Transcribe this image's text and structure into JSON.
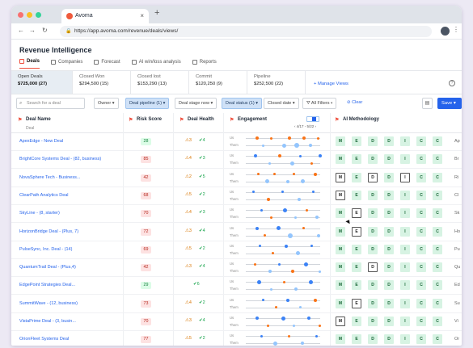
{
  "browser": {
    "tab_title": "Avoma",
    "url": "https://app.avoma.com/revenue/deals/views/"
  },
  "app": {
    "title": "Revenue Intelligence",
    "nav_tabs": [
      {
        "label": "Deals",
        "icon": "deals-icon",
        "active": true
      },
      {
        "label": "Companies",
        "icon": "companies-icon",
        "active": false
      },
      {
        "label": "Forecast",
        "icon": "forecast-icon",
        "active": false
      },
      {
        "label": "AI win/loss analysis",
        "icon": "ai-icon",
        "active": false
      },
      {
        "label": "Reports",
        "icon": "reports-icon",
        "active": false
      }
    ]
  },
  "views": [
    {
      "name": "Open Deals",
      "value": "$725,000 (27)",
      "active": true
    },
    {
      "name": "Closed Won",
      "value": "$294,500 (15)",
      "active": false
    },
    {
      "name": "Closed lost",
      "value": "$153,290 (13)",
      "active": false
    },
    {
      "name": "Commit",
      "value": "$120,250 (9)",
      "active": false
    },
    {
      "name": "Pipeline",
      "value": "$252,500 (22)",
      "active": false
    }
  ],
  "manage_views_label": "+ Manage Views",
  "filters": {
    "search_placeholder": "Search for a deal",
    "owner": "Owner",
    "deal_pipeline": "Deal pipeline (1)",
    "deal_stage": "Deal stage now",
    "deal_status": "Deal status (1)",
    "closed_date": "Closed date",
    "all_filters": "All Filters",
    "clear": "Clear",
    "save": "Save"
  },
  "columns": {
    "deal_name": "Deal Name",
    "deal_sub": "Deal",
    "risk_score": "Risk Score",
    "deal_health": "Deal Health",
    "engagement": "Engagement",
    "engagement_range": "4/17 - 5/22",
    "ai_methodology": "AI Methodology"
  },
  "deals": [
    {
      "name": "ApexEdge - New Deal",
      "risk": "28",
      "warn": "3",
      "ok": "4",
      "ai": "MEDDICC",
      "next": "Ap"
    },
    {
      "name": "BrightCore Systems Deal - (82, business)",
      "risk": "85",
      "warn": "4",
      "ok": "3",
      "ai": "MEDDICC",
      "next": "Br"
    },
    {
      "name": "NovaSphere Tech - Business...",
      "risk": "42",
      "warn": "2",
      "ok": "5",
      "ai": "MEDDICC",
      "next": "Ri"
    },
    {
      "name": "ClearPath Analytics Deal",
      "risk": "68",
      "warn": "5",
      "ok": "2",
      "ai": "MEDDICC",
      "next": "Cl"
    },
    {
      "name": "SkyLine - (8, starter)",
      "risk": "70",
      "warn": "4",
      "ok": "3",
      "ai": "MEDDICC",
      "next": "Sk"
    },
    {
      "name": "HorizonBridge Deal - (Plus, 7)",
      "risk": "72",
      "warn": "3",
      "ok": "4",
      "ai": "MEDDICC",
      "next": "Ho"
    },
    {
      "name": "PulseSync, Inc. Deal - (14)",
      "risk": "69",
      "warn": "5",
      "ok": "2",
      "ai": "MEDDICC",
      "next": "Pu"
    },
    {
      "name": "QuantumTrail Deal - (Plus,4)",
      "risk": "42",
      "warn": "3",
      "ok": "4",
      "ai": "MEDDICC",
      "next": "Qu"
    },
    {
      "name": "EdgePoint Strategies Deal...",
      "risk": "29",
      "warn": "",
      "ok": "6",
      "ai": "MEDDICC",
      "next": "Ed"
    },
    {
      "name": "SummitWave - (12, business)",
      "risk": "73",
      "warn": "4",
      "ok": "2",
      "ai": "MEDDICC",
      "next": "Su"
    },
    {
      "name": "VistaPrime Deal - (3, busin...",
      "risk": "70",
      "warn": "3",
      "ok": "4",
      "ai": "MEDDICC",
      "next": "Vi"
    },
    {
      "name": "OrionFleet Systems Deal",
      "risk": "77",
      "warn": "5",
      "ok": "2",
      "ai": "MEDDICC",
      "next": "Or"
    }
  ],
  "ai_letter_states": [
    [
      true,
      true,
      true,
      true,
      true,
      true,
      true
    ],
    [
      true,
      true,
      true,
      true,
      true,
      true,
      true
    ],
    [
      false,
      true,
      false,
      true,
      false,
      true,
      true
    ],
    [
      false,
      true,
      true,
      true,
      true,
      true,
      true
    ],
    [
      true,
      false,
      true,
      true,
      true,
      true,
      true
    ],
    [
      true,
      false,
      true,
      true,
      true,
      true,
      true
    ],
    [
      true,
      true,
      true,
      true,
      true,
      true,
      true
    ],
    [
      true,
      true,
      false,
      true,
      true,
      true,
      true
    ],
    [
      true,
      true,
      true,
      true,
      true,
      true,
      true
    ],
    [
      true,
      false,
      true,
      true,
      true,
      true,
      true
    ],
    [
      false,
      true,
      true,
      true,
      true,
      true,
      true
    ],
    [
      true,
      true,
      true,
      true,
      true,
      true,
      true
    ]
  ],
  "row_labels": {
    "us": "Us",
    "them": "Them"
  },
  "colors": {
    "accent": "#ef4f3d",
    "link": "#2563eb",
    "us_dot": "#3b82f6",
    "them_dot": "#93c5fd",
    "orange_dot": "#f97316"
  }
}
